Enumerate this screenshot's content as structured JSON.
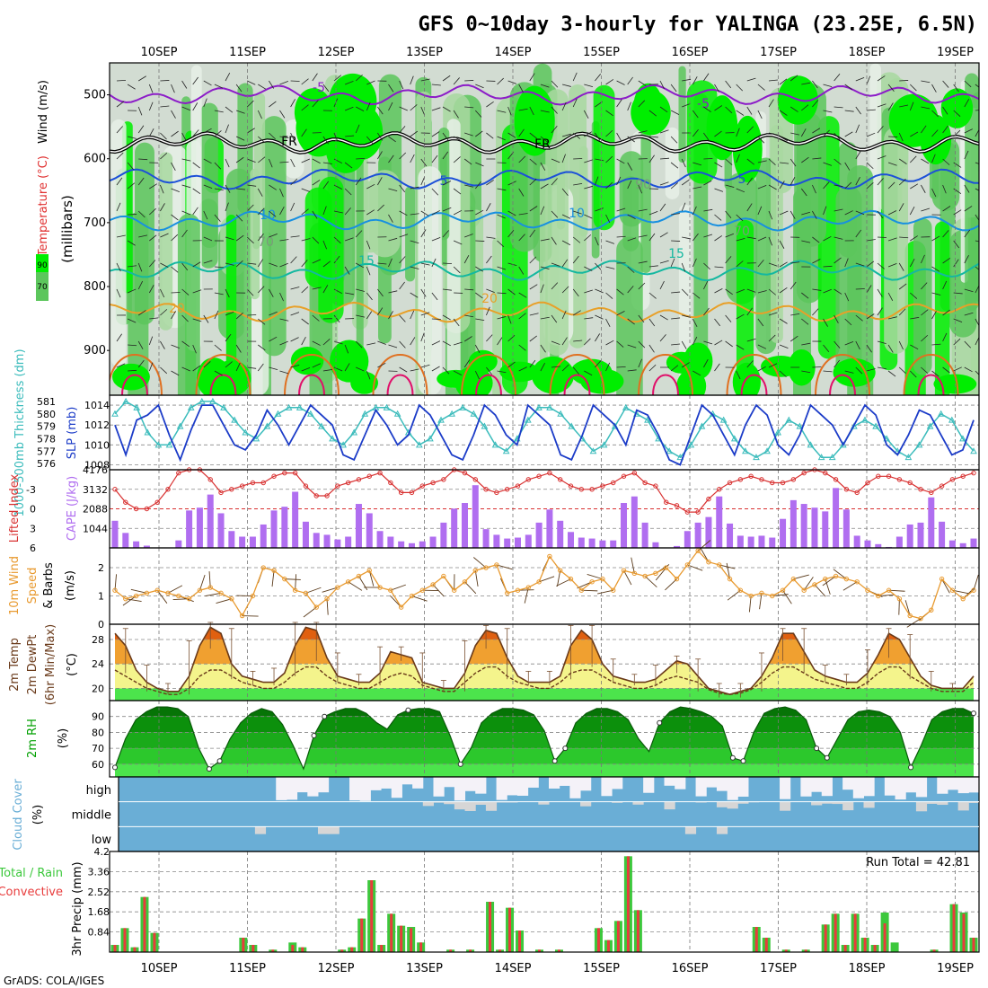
{
  "title": "GFS 0~10day 3-hourly for YALINGA (23.25E, 6.5N)",
  "credit": "GrADS: COLA/IGES",
  "run_total_label": "Run Total = 42.81",
  "colors": {
    "rh_dark": "#2ea82e",
    "rh_mid": "#5cc65c",
    "rh_bright": "#00ee00",
    "rh_light": "#d2dcd2",
    "slp_line": "#1c3cc8",
    "thickness_line": "#3cbcbc",
    "lifted_line": "#d83030",
    "cape_bar": "#b06ef0",
    "wind_line": "#e89a30",
    "temp_dark": "#e06010",
    "temp_orange": "#f0a030",
    "temp_yellow": "#f4f48c",
    "temp_green": "#4ce44c",
    "cloud_blue": "#6aaed6",
    "cloud_white": "#f4f2f8",
    "cloud_grey": "#d6d6d6",
    "precip_total": "#3cc83c",
    "precip_conv": "#e83c3c"
  },
  "chart_data": [
    {
      "type": "heatmap",
      "panel": "upper-air",
      "ylabel_parts": [
        "RH (%)",
        "Temperature (°C)",
        "Wind (m/s)"
      ],
      "ylabel_main": "(millibars)",
      "x": [
        "10SEP",
        "11SEP",
        "12SEP",
        "13SEP",
        "14SEP",
        "15SEP",
        "16SEP",
        "17SEP",
        "18SEP",
        "19SEP"
      ],
      "y_ticks": [
        500,
        600,
        700,
        800,
        900
      ],
      "ylim": [
        970,
        450
      ],
      "rh_legend": [
        "90",
        "70"
      ],
      "isotherms": [
        {
          "label": "-5",
          "pressure": 500,
          "color": "#8c1cc8"
        },
        {
          "label": "FR",
          "pressure": 575,
          "color": "#000000"
        },
        {
          "label": "5",
          "pressure": 632,
          "color": "#1c50d8"
        },
        {
          "label": "10",
          "pressure": 697,
          "color": "#1890e0"
        },
        {
          "label": "15",
          "pressure": 775,
          "color": "#14b8a0"
        },
        {
          "label": "20",
          "pressure": 840,
          "color": "#e8a028"
        }
      ],
      "contour_labels": [
        "-5",
        "FR",
        "5",
        "10",
        "15",
        "20",
        "-5",
        "FR",
        "5",
        "10",
        "15",
        "20",
        "70",
        "70",
        "90"
      ]
    },
    {
      "type": "line",
      "panel": "sea-level-pressure",
      "ylabel": "SLP (mb)",
      "ylabel2": "1000-500mb Thickness (dm)",
      "ylim": [
        1007.5,
        1015
      ],
      "yticks": [
        1008,
        1010,
        1012,
        1014
      ],
      "y2lim": [
        575.5,
        581.5
      ],
      "y2ticks": [
        576,
        577,
        578,
        579,
        580,
        581
      ],
      "series": [
        {
          "name": "SLP",
          "values": [
            1012,
            1009,
            1012.5,
            1013,
            1014,
            1011,
            1008.5,
            1011.5,
            1014,
            1014,
            1012,
            1010,
            1009.5,
            1011,
            1013.5,
            1012,
            1010,
            1012,
            1014,
            1013,
            1012,
            1009,
            1008.5,
            1011,
            1013.5,
            1012,
            1010,
            1011,
            1014,
            1013,
            1011,
            1009,
            1008.5,
            1011,
            1014,
            1013,
            1011,
            1010,
            1014,
            1013,
            1012,
            1009,
            1008.5,
            1011,
            1014,
            1013,
            1012,
            1010,
            1013.5,
            1013,
            1011,
            1008.5,
            1008,
            1011,
            1014,
            1013,
            1011,
            1009,
            1012,
            1014,
            1013,
            1010,
            1009,
            1011,
            1014,
            1013,
            1012,
            1010,
            1012,
            1014,
            1013,
            1010,
            1009,
            1011,
            1013.5,
            1013,
            1011,
            1009,
            1009.5,
            1012.5
          ]
        },
        {
          "name": "Thickness",
          "values": [
            580,
            581,
            580.5,
            578.5,
            577.5,
            577.5,
            579,
            580.5,
            581,
            581,
            580.5,
            579.5,
            578.5,
            578,
            579,
            580,
            580.5,
            580.5,
            580,
            579,
            578,
            577.5,
            578.5,
            580,
            580.5,
            580.5,
            580,
            578.5,
            577.5,
            578,
            579.5,
            580,
            580.5,
            580,
            579,
            577.5,
            577,
            578,
            579.5,
            580.5,
            580.5,
            580,
            579,
            578,
            577,
            577.5,
            579,
            580.5,
            580,
            579.5,
            578,
            577,
            576.5,
            577.5,
            579,
            580,
            579.5,
            578,
            577,
            576.5,
            577,
            578.5,
            579.5,
            579,
            577.5,
            576.5,
            576.5,
            577.5,
            579,
            579.5,
            579,
            578,
            577,
            576.5,
            577.5,
            579,
            580,
            579.5,
            578,
            577
          ]
        }
      ]
    },
    {
      "type": "bar",
      "panel": "stability",
      "ylabel": "Lifted Index",
      "ylabel2": "CAPE (J/kg)",
      "ylim": [
        6,
        -6
      ],
      "yticks": [
        -3,
        0,
        3,
        6
      ],
      "y2lim": [
        0,
        4176
      ],
      "y2ticks": [
        1044,
        2088,
        3132,
        4176
      ],
      "series": [
        {
          "name": "CAPE",
          "values": [
            1450,
            800,
            350,
            120,
            20,
            20,
            400,
            2000,
            2150,
            2850,
            1850,
            900,
            600,
            600,
            1250,
            2000,
            2200,
            3000,
            1400,
            800,
            700,
            450,
            600,
            2350,
            1850,
            900,
            600,
            350,
            250,
            350,
            600,
            1350,
            2100,
            2400,
            3350,
            1000,
            700,
            500,
            550,
            700,
            1350,
            2050,
            1450,
            850,
            550,
            500,
            400,
            400,
            2400,
            2750,
            1350,
            300,
            20,
            100,
            900,
            1350,
            1650,
            2750,
            1300,
            650,
            600,
            650,
            550,
            1550,
            2550,
            2350,
            2150,
            1950,
            3200,
            2050,
            650,
            400,
            200,
            50,
            600,
            1250,
            1350,
            2700,
            1400,
            400,
            250,
            500
          ]
        },
        {
          "name": "Lifted Index",
          "values": [
            -3,
            -1,
            0,
            0,
            -1,
            -3,
            -5.5,
            -6,
            -6,
            -4.5,
            -2.5,
            -3,
            -3.5,
            -4,
            -4,
            -5,
            -5.5,
            -5.5,
            -3.5,
            -2,
            -2,
            -3.5,
            -4,
            -4.5,
            -5,
            -5.5,
            -4,
            -2.5,
            -2.5,
            -3.5,
            -4,
            -4.5,
            -6,
            -5.5,
            -4.5,
            -3,
            -2.5,
            -3,
            -3.5,
            -4.5,
            -5,
            -5.5,
            -4.5,
            -3.5,
            -3,
            -3,
            -3.5,
            -4,
            -5,
            -5.5,
            -4,
            -3.5,
            -1,
            -0.5,
            0.5,
            0.5,
            -1.5,
            -3,
            -4,
            -4.5,
            -5,
            -4.5,
            -4,
            -4,
            -4.5,
            -5.5,
            -6,
            -5.5,
            -4.5,
            -3,
            -2.5,
            -4,
            -5,
            -5,
            -4.5,
            -4,
            -3,
            -2.5,
            -3.5,
            -4.5,
            -5,
            -5.5
          ]
        }
      ]
    },
    {
      "type": "line",
      "panel": "wind",
      "ylabel": "10m Wind Speed & Barbs (m/s)",
      "ylim": [
        0,
        2.7
      ],
      "yticks": [
        0,
        1,
        2
      ],
      "series": [
        {
          "name": "10m Wind Speed",
          "values": [
            1.2,
            0.9,
            1,
            1.1,
            1.2,
            1.1,
            1,
            0.9,
            1.2,
            1.3,
            1.1,
            0.9,
            0.3,
            1,
            2,
            1.9,
            1.6,
            1.2,
            1.1,
            0.6,
            0.9,
            1.3,
            1.5,
            1.7,
            1.9,
            1.3,
            1.2,
            0.6,
            1,
            1.2,
            1.4,
            1.7,
            1.2,
            1.5,
            1.9,
            2,
            2.1,
            1.1,
            1.2,
            1.3,
            1.5,
            2.4,
            1.9,
            1.6,
            1.2,
            1.5,
            1.6,
            1.2,
            1.9,
            1.8,
            1.7,
            1.8,
            2,
            1.6,
            2.1,
            2.6,
            2.2,
            2.1,
            1.6,
            1.2,
            1,
            1.1,
            1,
            1.2,
            1.6,
            1.2,
            1.4,
            1.6,
            1.7,
            1.6,
            1.5,
            1.2,
            1,
            1.2,
            0.9,
            0.3,
            0.2,
            0.5,
            1.6,
            1.2,
            0.9,
            1.2
          ]
        }
      ]
    },
    {
      "type": "area",
      "panel": "temperature",
      "ylabel": "2m Temp 2m DewPt (6hr Min/Max) (°C)",
      "ylim": [
        18,
        30.5
      ],
      "yticks": [
        20,
        24,
        28
      ],
      "series": [
        {
          "name": "2m Temp",
          "values": [
            29,
            27,
            23,
            21,
            20,
            19.5,
            19.5,
            22,
            27,
            30,
            29,
            24,
            22,
            21.5,
            21,
            21,
            22.5,
            27,
            30,
            29.5,
            25,
            22,
            21.5,
            21,
            21,
            22.5,
            26,
            25.5,
            25,
            21,
            20.5,
            20,
            20,
            22.5,
            27,
            29.5,
            29,
            25,
            22,
            21,
            21,
            21,
            22,
            27,
            29.5,
            28,
            24,
            22,
            21.5,
            21,
            21,
            21.5,
            23,
            24.5,
            24,
            22,
            20,
            19.5,
            19,
            19.5,
            20,
            22,
            25,
            29,
            29,
            26,
            23,
            22,
            21.5,
            21,
            21,
            22.5,
            25.5,
            29,
            28,
            25,
            22,
            20.5,
            20,
            20,
            20,
            22
          ]
        },
        {
          "name": "2m DewPt",
          "values": [
            23,
            22,
            21,
            20,
            19.5,
            19,
            19,
            20,
            22,
            23,
            23,
            22,
            21,
            20.5,
            20,
            20,
            21,
            22.5,
            23.5,
            23.5,
            22,
            21,
            20.5,
            20,
            20,
            21,
            22,
            22.5,
            22,
            20.5,
            20,
            19.5,
            19.5,
            21,
            22.5,
            23.5,
            23.5,
            22,
            21,
            20.5,
            20,
            20,
            21,
            22.5,
            23,
            23,
            22,
            21,
            20.5,
            20,
            20,
            20.5,
            21.5,
            22,
            21.5,
            21,
            19.8,
            19.2,
            19,
            19.2,
            19.8,
            21,
            22.5,
            23.5,
            23.5,
            22.5,
            21.5,
            21,
            20.5,
            20,
            20,
            21,
            22.5,
            23.5,
            23.5,
            22,
            21,
            20,
            19.5,
            19.5,
            19.5,
            21
          ]
        }
      ]
    },
    {
      "type": "area",
      "panel": "humidity",
      "ylabel": "2m RH (%)",
      "ylim": [
        52,
        100
      ],
      "yticks": [
        60,
        70,
        80,
        90
      ],
      "series": [
        {
          "name": "2m RH",
          "values": [
            58,
            76,
            88,
            93,
            96,
            96,
            95,
            90,
            70,
            57,
            62,
            76,
            86,
            92,
            95,
            93,
            85,
            72,
            57,
            78,
            90,
            93,
            95,
            95,
            92,
            86,
            82,
            91,
            94,
            95,
            95,
            93,
            78,
            60,
            70,
            86,
            92,
            95,
            95,
            94,
            91,
            81,
            62,
            70,
            86,
            92,
            95,
            95,
            93,
            88,
            76,
            68,
            86,
            93,
            96,
            95,
            93,
            90,
            84,
            64,
            62,
            80,
            92,
            95,
            96,
            94,
            88,
            70,
            64,
            76,
            88,
            93,
            94,
            93,
            90,
            80,
            58,
            72,
            88,
            93,
            95,
            95,
            92
          ]
        }
      ]
    },
    {
      "type": "heatmap",
      "panel": "cloud-cover",
      "ylabel": "Cloud Cover (%)",
      "levels": [
        "high",
        "middle",
        "low"
      ]
    },
    {
      "type": "bar",
      "panel": "precipitation",
      "ylabel": "3hr Precip (mm)",
      "legend": [
        "Total / Rain",
        "Convective"
      ],
      "ylim": [
        0,
        4.2
      ],
      "yticks": [
        0.84,
        1.68,
        2.52,
        3.36,
        4.2
      ],
      "series": [
        {
          "name": "Total",
          "values": [
            0.3,
            1,
            0.2,
            2.3,
            0.8,
            0,
            0,
            0,
            0,
            0,
            0,
            0,
            0,
            0.6,
            0.3,
            0,
            0.1,
            0,
            0.4,
            0.2,
            0,
            0,
            0,
            0.1,
            0.2,
            1.4,
            3,
            0.3,
            1.6,
            1.1,
            1.05,
            0.4,
            0,
            0,
            0.1,
            0,
            0.1,
            0,
            2.1,
            0.1,
            1.85,
            0.9,
            0,
            0.1,
            0,
            0.1,
            0,
            0,
            0,
            1,
            0.5,
            1.3,
            4,
            1.75,
            0,
            0,
            0,
            0,
            0,
            0,
            0,
            0,
            0,
            0,
            0,
            1.05,
            0.6,
            0,
            0.1,
            0,
            0.1,
            0,
            1.15,
            1.6,
            0.3,
            1.6,
            0.6,
            0.3,
            1.65,
            0.4,
            0,
            0,
            0,
            0.1,
            0,
            2,
            1.65,
            0.6
          ]
        },
        {
          "name": "Convective",
          "values": [
            0.3,
            1,
            0.2,
            2.3,
            0.8,
            0,
            0,
            0,
            0,
            0,
            0,
            0,
            0,
            0.6,
            0.3,
            0,
            0.1,
            0,
            0.3,
            0.2,
            0,
            0,
            0,
            0.1,
            0.2,
            1.4,
            3,
            0.3,
            1.6,
            1.1,
            1,
            0.4,
            0,
            0,
            0.1,
            0,
            0.1,
            0,
            2.1,
            0.1,
            1.85,
            0.9,
            0,
            0.1,
            0,
            0.1,
            0,
            0,
            0,
            1,
            0.5,
            1.3,
            4,
            1.75,
            0,
            0,
            0,
            0,
            0,
            0,
            0,
            0,
            0,
            0,
            0,
            1.05,
            0.6,
            0,
            0.1,
            0,
            0.1,
            0,
            1.15,
            1.6,
            0.3,
            1.6,
            0.6,
            0.3,
            1.2,
            0,
            0,
            0,
            0,
            0.1,
            0,
            2,
            1.6,
            0.6
          ]
        }
      ]
    }
  ]
}
